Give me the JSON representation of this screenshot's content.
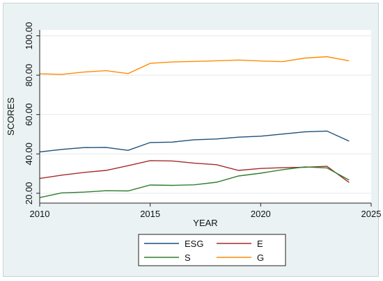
{
  "chart_data": {
    "type": "line",
    "xlabel": "YEAR",
    "ylabel": "SCORES",
    "xlim": [
      2010,
      2025
    ],
    "ylim": [
      15,
      103
    ],
    "x_ticks": [
      2010,
      2015,
      2020,
      2025
    ],
    "y_ticks": [
      "20.00",
      "40.00",
      "60.00",
      "80.00",
      "100.00"
    ],
    "x": [
      2010,
      2011,
      2012,
      2013,
      2014,
      2015,
      2016,
      2017,
      2018,
      2019,
      2020,
      2021,
      2022,
      2023,
      2024
    ],
    "series": [
      {
        "name": "ESG",
        "color": "#1a4f7a",
        "values": [
          41.0,
          42.3,
          43.2,
          43.3,
          41.8,
          45.8,
          46.0,
          47.2,
          47.6,
          48.5,
          49.0,
          50.1,
          51.2,
          51.6,
          46.5
        ]
      },
      {
        "name": "E",
        "color": "#a52a2a",
        "values": [
          27.5,
          29.2,
          30.6,
          31.6,
          34.0,
          36.6,
          36.4,
          35.3,
          34.5,
          31.6,
          32.6,
          33.0,
          33.2,
          33.7,
          25.5
        ]
      },
      {
        "name": "S",
        "color": "#2e7d2e",
        "values": [
          17.8,
          20.2,
          20.6,
          21.3,
          21.2,
          24.2,
          24.0,
          24.3,
          25.6,
          28.8,
          30.2,
          32.0,
          33.4,
          32.9,
          26.7
        ]
      },
      {
        "name": "G",
        "color": "#ff8c00",
        "values": [
          80.7,
          80.4,
          81.6,
          82.3,
          80.8,
          86.0,
          86.7,
          87.0,
          87.3,
          87.7,
          87.2,
          86.9,
          88.7,
          89.4,
          87.3
        ]
      }
    ],
    "legend_position": "bottom",
    "grid": true
  }
}
